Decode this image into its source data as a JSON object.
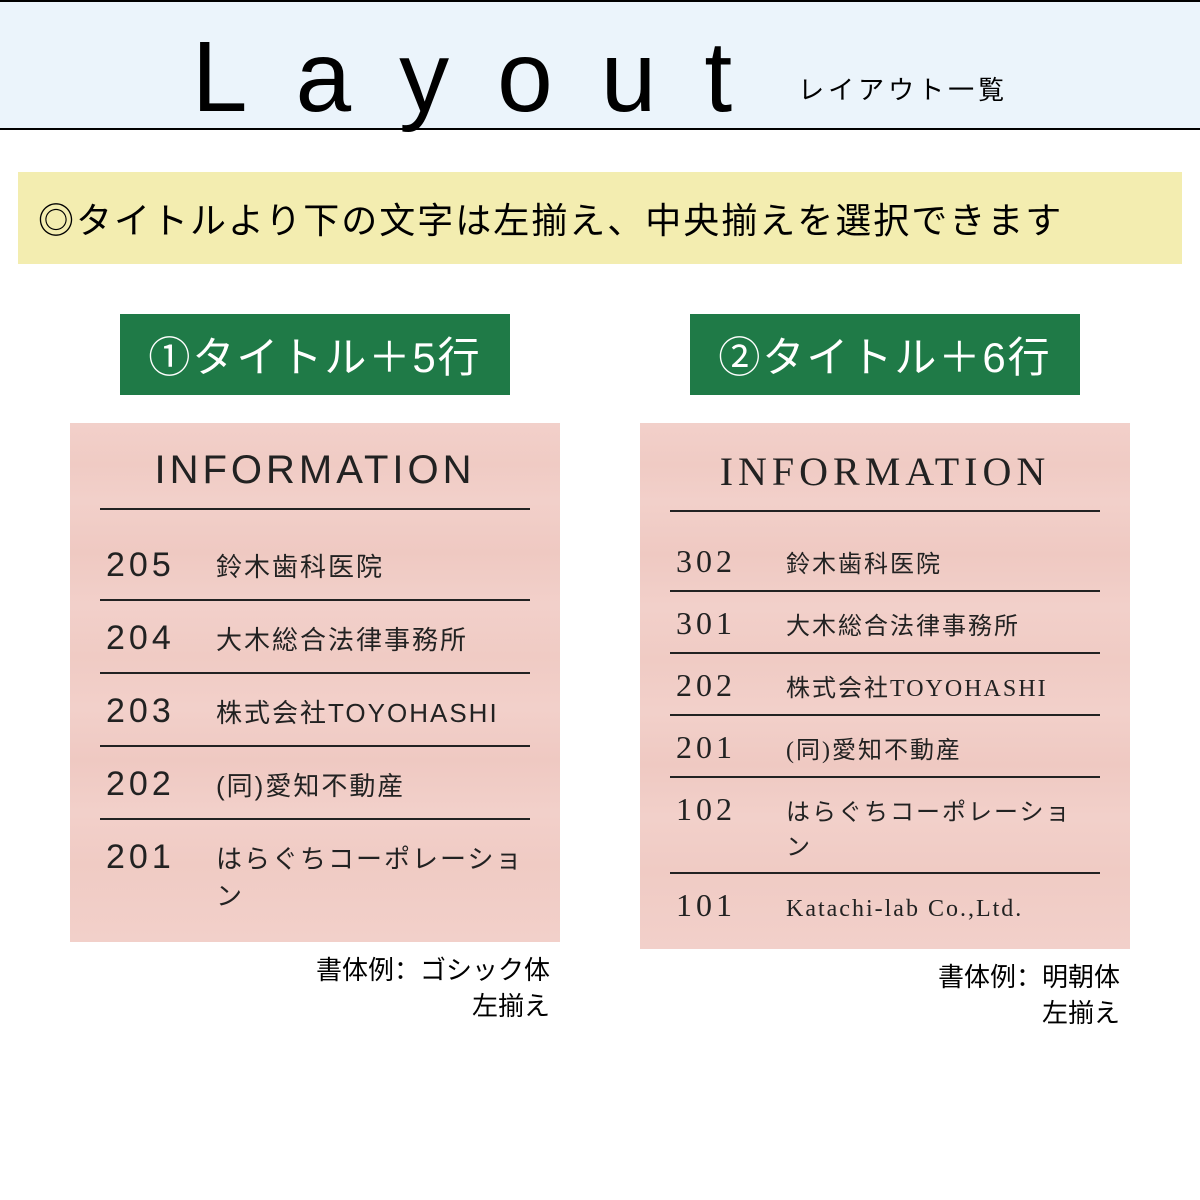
{
  "header": {
    "title": "Layout",
    "subtitle": "レイアウト一覧"
  },
  "note": "◎タイトルより下の文字は左揃え、中央揃えを選択できます",
  "colors": {
    "header_bg": "#ebf4fb",
    "note_bg": "#f3edb0",
    "tag_bg": "#1f7a47",
    "board_bg": "#f2d0ca",
    "text": "#000000",
    "rule": "#222222"
  },
  "panels": [
    {
      "tag": "①タイトル＋5行",
      "board_title": "INFORMATION",
      "font_style": "gothic",
      "rows": [
        {
          "num": "205",
          "name": "鈴木歯科医院"
        },
        {
          "num": "204",
          "name": "大木総合法律事務所"
        },
        {
          "num": "203",
          "name": "株式会社TOYOHASHI"
        },
        {
          "num": "202",
          "name": "(同)愛知不動産"
        },
        {
          "num": "201",
          "name": "はらぐちコーポレーション"
        }
      ],
      "caption_line1": "書体例：ゴシック体",
      "caption_line2": "左揃え　"
    },
    {
      "tag": "②タイトル＋6行",
      "board_title": "INFORMATION",
      "font_style": "serif",
      "rows": [
        {
          "num": "302",
          "name": "鈴木歯科医院"
        },
        {
          "num": "301",
          "name": "大木総合法律事務所"
        },
        {
          "num": "202",
          "name": "株式会社TOYOHASHI"
        },
        {
          "num": "201",
          "name": "(同)愛知不動産"
        },
        {
          "num": "102",
          "name": "はらぐちコーポレーション"
        },
        {
          "num": "101",
          "name": "Katachi-lab Co.,Ltd."
        }
      ],
      "caption_line1": "書体例：明朝体",
      "caption_line2": "左揃え　"
    }
  ]
}
